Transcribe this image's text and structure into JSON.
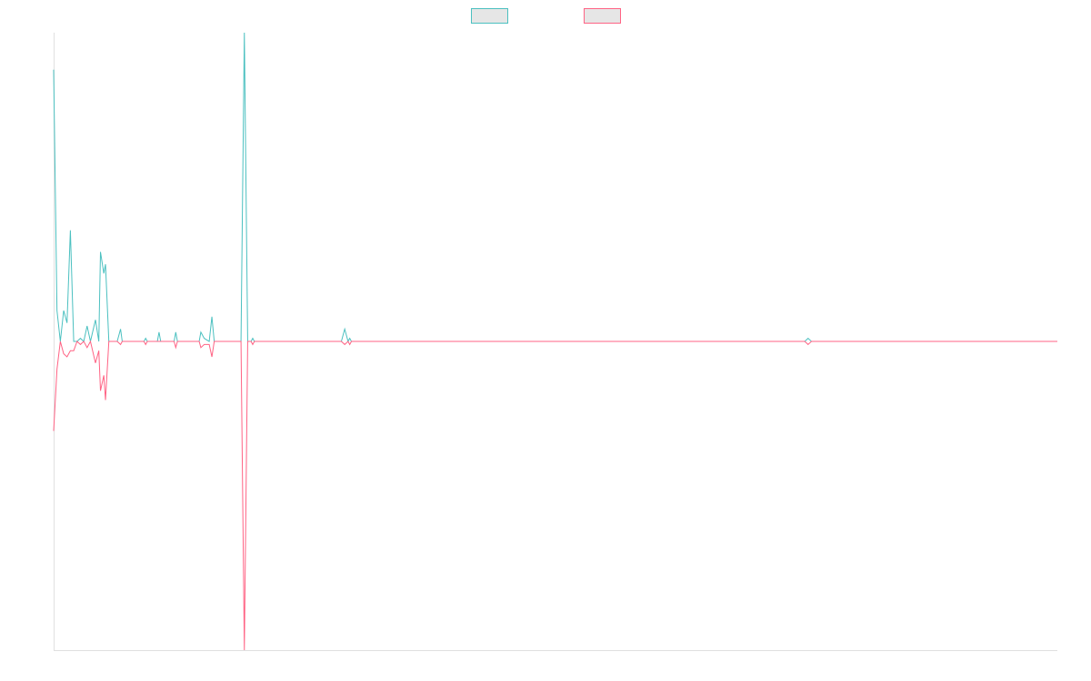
{
  "chart_data": {
    "type": "line",
    "x": [
      0,
      1,
      2,
      3,
      4,
      5,
      6,
      7,
      8,
      9,
      10,
      11,
      12.5,
      13.5,
      14,
      15,
      15.5,
      16.5,
      19,
      20,
      20.5,
      27,
      27.5,
      28,
      31,
      31.5,
      32,
      36,
      36.5,
      37,
      43.5,
      44,
      45,
      46.5,
      47.3,
      48,
      56,
      57,
      58,
      59,
      59.5,
      60,
      86,
      87,
      88,
      88.5,
      89,
      224.5,
      225.5,
      226.5,
      300
    ],
    "series": [
      {
        "color": "#4bc0c0",
        "values": [
          88,
          10,
          0,
          10,
          6,
          36,
          0,
          0,
          1,
          0,
          5,
          0,
          7,
          0,
          29,
          22,
          25,
          0,
          0,
          4,
          0,
          0,
          1,
          0,
          0,
          3,
          0,
          0,
          3,
          0,
          0,
          3,
          1,
          0,
          8,
          0,
          0,
          100,
          0,
          0,
          1,
          0,
          0,
          4,
          0,
          1,
          0,
          0,
          1,
          0,
          0
        ]
      },
      {
        "color": "#ff6384",
        "values": [
          -29,
          -9,
          0,
          -4,
          -5,
          -3,
          -3,
          0,
          -1,
          0,
          -2,
          0,
          -7,
          -3,
          -16,
          -11,
          -19,
          0,
          0,
          -1,
          0,
          0,
          -1,
          0,
          0,
          0,
          0,
          0,
          -2,
          0,
          0,
          -2,
          -1,
          -1,
          -5,
          0,
          0,
          -100,
          0,
          0,
          -1,
          0,
          0,
          -1,
          0,
          -1,
          0,
          0,
          -1,
          0,
          0
        ]
      }
    ],
    "xlim": [
      0,
      300
    ],
    "ylim": [
      -100,
      100
    ],
    "legend": "top"
  }
}
